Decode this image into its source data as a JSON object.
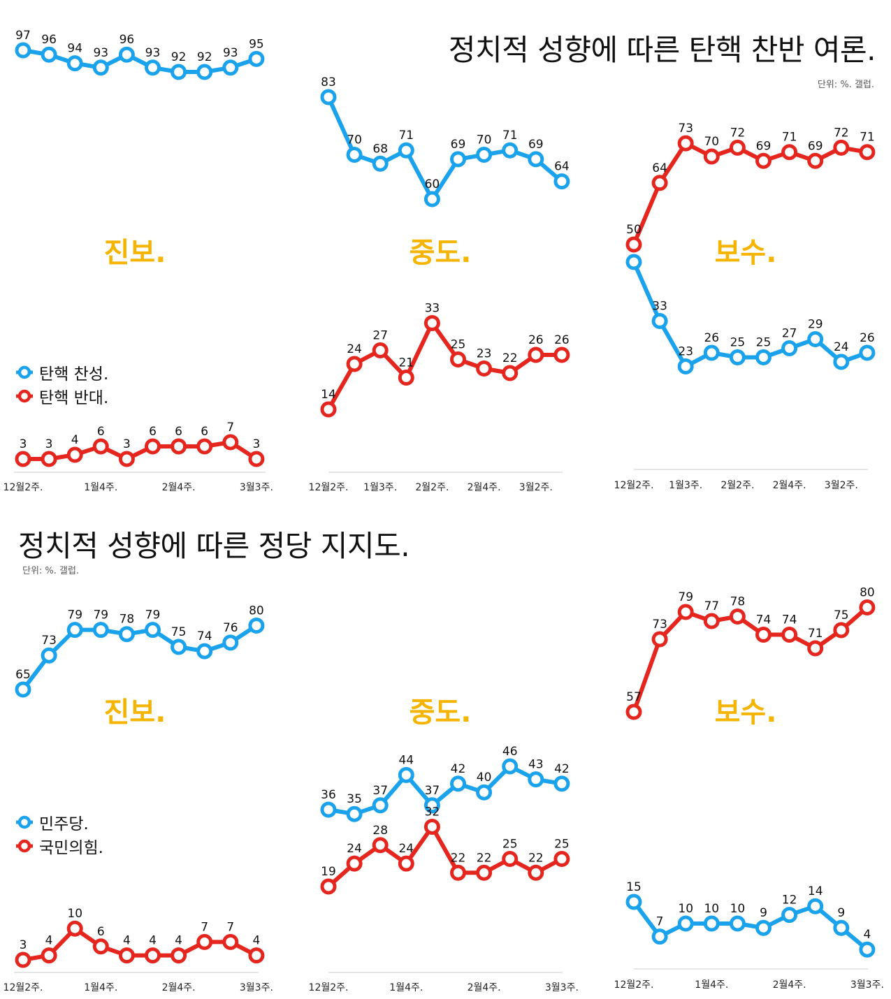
{
  "colors": {
    "blue": "#1AA3EC",
    "red": "#E5261E",
    "label": "#F5B400",
    "axis": "#cccccc"
  },
  "sections": [
    {
      "title": "정치적 성향에 따른 탄핵 찬반 여론.",
      "unit": "단위: %. 갤럽.",
      "legend": [
        {
          "label": "탄핵 찬성.",
          "color": "#1AA3EC"
        },
        {
          "label": "탄핵 반대.",
          "color": "#E5261E"
        }
      ]
    },
    {
      "title": "정치적 성향에 따른 정당 지지도.",
      "unit": "단위: %. 갤럽.",
      "legend": [
        {
          "label": "민주당.",
          "color": "#1AA3EC"
        },
        {
          "label": "국민의힘.",
          "color": "#E5261E"
        }
      ]
    }
  ],
  "chart_data": [
    {
      "type": "line",
      "title": "진보.",
      "section": "정치적 성향에 따른 탄핵 찬반 여론.",
      "x_ticks": [
        "12월2주.",
        "1월4주.",
        "2월4주.",
        "3월3주."
      ],
      "series": [
        {
          "name": "탄핵 찬성.",
          "color": "#1AA3EC",
          "values": [
            97,
            96,
            94,
            93,
            96,
            93,
            92,
            92,
            93,
            95
          ]
        },
        {
          "name": "탄핵 반대.",
          "color": "#E5261E",
          "values": [
            3,
            3,
            4,
            6,
            3,
            6,
            6,
            6,
            7,
            3
          ]
        }
      ]
    },
    {
      "type": "line",
      "title": "중도.",
      "section": "정치적 성향에 따른 탄핵 찬반 여론.",
      "x_ticks": [
        "12월2주.",
        "1월3주.",
        "2월2주.",
        "2월4주.",
        "3월2주."
      ],
      "series": [
        {
          "name": "탄핵 찬성.",
          "color": "#1AA3EC",
          "values": [
            83,
            70,
            68,
            71,
            60,
            69,
            70,
            71,
            69,
            64
          ]
        },
        {
          "name": "탄핵 반대.",
          "color": "#E5261E",
          "values": [
            14,
            24,
            27,
            21,
            33,
            25,
            23,
            22,
            26,
            26
          ]
        }
      ]
    },
    {
      "type": "line",
      "title": "보수.",
      "section": "정치적 성향에 따른 탄핵 찬반 여론.",
      "x_ticks": [
        "12월2주.",
        "1월3주.",
        "2월2주.",
        "2월4주.",
        "3월2주."
      ],
      "series": [
        {
          "name": "탄핵 찬성.",
          "color": "#1AA3EC",
          "values": [
            46,
            33,
            23,
            26,
            25,
            25,
            27,
            29,
            24,
            26
          ]
        },
        {
          "name": "탄핵 반대.",
          "color": "#E5261E",
          "values": [
            50,
            64,
            73,
            70,
            72,
            69,
            71,
            69,
            72,
            71
          ]
        }
      ]
    },
    {
      "type": "line",
      "title": "진보.",
      "section": "정치적 성향에 따른 정당 지지도.",
      "x_ticks": [
        "12월2주.",
        "1월4주.",
        "2월4주.",
        "3월3주."
      ],
      "series": [
        {
          "name": "민주당.",
          "color": "#1AA3EC",
          "values": [
            65,
            73,
            79,
            79,
            78,
            79,
            75,
            74,
            76,
            80
          ]
        },
        {
          "name": "국민의힘.",
          "color": "#E5261E",
          "values": [
            3,
            4,
            10,
            6,
            4,
            4,
            4,
            7,
            7,
            4
          ]
        }
      ]
    },
    {
      "type": "line",
      "title": "중도.",
      "section": "정치적 성향에 따른 정당 지지도.",
      "x_ticks": [
        "12월2주.",
        "1월4주.",
        "2월4주.",
        "3월3주."
      ],
      "series": [
        {
          "name": "민주당.",
          "color": "#1AA3EC",
          "values": [
            36,
            35,
            37,
            44,
            37,
            42,
            40,
            46,
            43,
            42
          ]
        },
        {
          "name": "국민의힘.",
          "color": "#E5261E",
          "values": [
            19,
            24,
            28,
            24,
            32,
            22,
            22,
            25,
            22,
            25
          ]
        }
      ]
    },
    {
      "type": "line",
      "title": "보수.",
      "section": "정치적 성향에 따른 정당 지지도.",
      "x_ticks": [
        "12월2주.",
        "1월4주.",
        "2월4주.",
        "3월3주."
      ],
      "series": [
        {
          "name": "민주당.",
          "color": "#1AA3EC",
          "values": [
            15,
            7,
            10,
            10,
            10,
            9,
            12,
            14,
            9,
            4
          ]
        },
        {
          "name": "국민의힘.",
          "color": "#E5261E",
          "values": [
            57,
            73,
            79,
            77,
            78,
            74,
            74,
            71,
            75,
            80
          ]
        }
      ]
    }
  ]
}
